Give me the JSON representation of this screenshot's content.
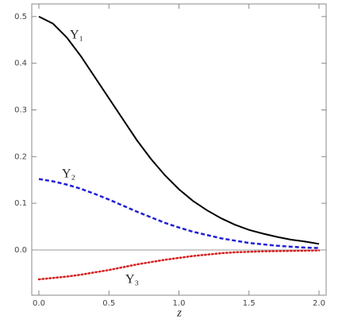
{
  "chart_data": {
    "type": "line",
    "x_label": "z",
    "x": [
      0,
      0.1,
      0.2,
      0.3,
      0.4,
      0.5,
      0.6,
      0.7,
      0.8,
      0.9,
      1.0,
      1.1,
      1.2,
      1.3,
      1.4,
      1.5,
      1.6,
      1.7,
      1.8,
      1.9,
      2.0
    ],
    "series": [
      {
        "name": "Υ₁",
        "color": "#000000",
        "dash": "solid",
        "values": [
          0.5,
          0.485,
          0.455,
          0.415,
          0.37,
          0.325,
          0.28,
          0.235,
          0.195,
          0.16,
          0.13,
          0.105,
          0.085,
          0.068,
          0.054,
          0.043,
          0.035,
          0.028,
          0.022,
          0.018,
          0.013
        ]
      },
      {
        "name": "Υ₂",
        "color": "#1f1fd6",
        "dash": "dashed",
        "values": [
          0.152,
          0.147,
          0.14,
          0.131,
          0.12,
          0.108,
          0.095,
          0.082,
          0.07,
          0.058,
          0.048,
          0.039,
          0.032,
          0.025,
          0.02,
          0.015,
          0.012,
          0.009,
          0.007,
          0.005,
          0.004
        ]
      },
      {
        "name": "Υ₃",
        "color": "#d62020",
        "dash": "dotted",
        "values": [
          -0.063,
          -0.06,
          -0.057,
          -0.053,
          -0.048,
          -0.043,
          -0.037,
          -0.031,
          -0.026,
          -0.021,
          -0.017,
          -0.013,
          -0.01,
          -0.007,
          -0.005,
          -0.004,
          -0.003,
          -0.0025,
          -0.002,
          -0.0015,
          -0.001
        ]
      }
    ],
    "xlim": [
      -0.051,
      2.051
    ],
    "ylim": [
      -0.097,
      0.527
    ],
    "xticks": [
      {
        "value": 0,
        "label": "0.0"
      },
      0.5,
      {
        "value": 1,
        "label": "1.0"
      },
      1.5,
      {
        "value": 2,
        "label": "2.0"
      }
    ],
    "yticks": [
      {
        "value": 0,
        "label": "0.0"
      },
      0.1,
      0.2,
      0.3,
      0.4,
      0.5
    ]
  }
}
